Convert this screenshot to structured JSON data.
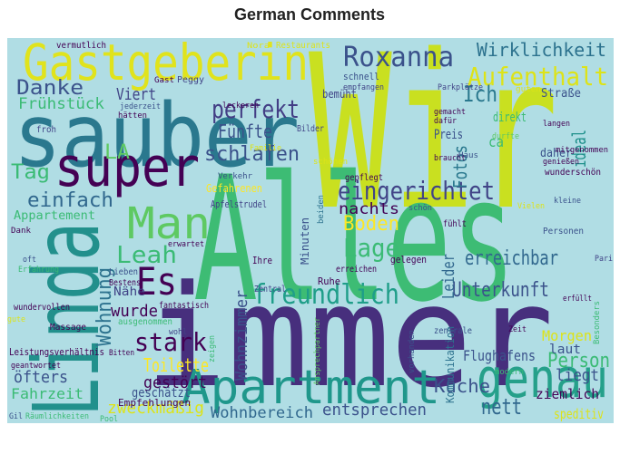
{
  "title": "German Comments",
  "words": [
    {
      "text": "Wir",
      "color": "#c9e020"
    },
    {
      "text": "Alles",
      "color": "#3dbc74"
    },
    {
      "text": "immer",
      "color": "#472f7d"
    },
    {
      "text": "sauber",
      "color": "#2a788e"
    },
    {
      "text": "Gastgeberin",
      "color": "#e0e31c"
    },
    {
      "text": "Linda",
      "color": "#22908c"
    },
    {
      "text": "Apartment",
      "color": "#1f978b"
    },
    {
      "text": "super",
      "color": "#440154"
    },
    {
      "text": "Man",
      "color": "#5ec962"
    },
    {
      "text": "genau",
      "color": "#25a08a"
    },
    {
      "text": "Es",
      "color": "#440154"
    },
    {
      "text": "Roxanna",
      "color": "#3b528b"
    },
    {
      "text": "Aufenthalt",
      "color": "#dde318"
    },
    {
      "text": "Wirklichkeit",
      "color": "#2c728e"
    },
    {
      "text": "Ich",
      "color": "#2a788e"
    },
    {
      "text": "Danke",
      "color": "#3b528b"
    },
    {
      "text": "Viert",
      "color": "#414487"
    },
    {
      "text": "perfekt",
      "color": "#433e85"
    },
    {
      "text": "Fünfte",
      "color": "#3b528b"
    },
    {
      "text": "Frühstück",
      "color": "#3bbb75"
    },
    {
      "text": "LA",
      "color": "#5ec962"
    },
    {
      "text": "Tag",
      "color": "#3bbb75"
    },
    {
      "text": "schlafen",
      "color": "#3b528b"
    },
    {
      "text": "eingerichtet",
      "color": "#414487"
    },
    {
      "text": "einfach",
      "color": "#31688e"
    },
    {
      "text": "Appartement",
      "color": "#3bbb75"
    },
    {
      "text": "Leah",
      "color": "#3bbb75"
    },
    {
      "text": "nachts",
      "color": "#440154"
    },
    {
      "text": "Boden",
      "color": "#fde725"
    },
    {
      "text": "Lage",
      "color": "#3bbb75"
    },
    {
      "text": "Wohnung",
      "color": "#2c728e"
    },
    {
      "text": "Nähe",
      "color": "#414487"
    },
    {
      "text": "wurde",
      "color": "#440154"
    },
    {
      "text": "freundlich",
      "color": "#1f9e89"
    },
    {
      "text": "Unterkunft",
      "color": "#3b528b"
    },
    {
      "text": "erreichbar",
      "color": "#31688e"
    },
    {
      "text": "Leider",
      "color": "#31688e"
    },
    {
      "text": "Fotos",
      "color": "#2a788e"
    },
    {
      "text": "ideal",
      "color": "#21918c"
    },
    {
      "text": "Person",
      "color": "#3bbb75"
    },
    {
      "text": "stark",
      "color": "#440154"
    },
    {
      "text": "Toilette",
      "color": "#fde725"
    },
    {
      "text": "gestört",
      "color": "#440154"
    },
    {
      "text": "Wohnzimmer",
      "color": "#3b528b"
    },
    {
      "text": "Küche",
      "color": "#3b528b"
    },
    {
      "text": "nett",
      "color": "#31688e"
    },
    {
      "text": "entsprechen",
      "color": "#3b528b"
    },
    {
      "text": "zweckmäßig",
      "color": "#dde318"
    },
    {
      "text": "Wohnbereich",
      "color": "#31688e"
    },
    {
      "text": "Fahrzeit",
      "color": "#3bbb75"
    },
    {
      "text": "öfters",
      "color": "#3b528b"
    },
    {
      "text": "Empfehlungen",
      "color": "#440154"
    },
    {
      "text": "geschätzt",
      "color": "#3b528b"
    },
    {
      "text": "Morgen",
      "color": "#dde318"
    },
    {
      "text": "laut",
      "color": "#3b528b"
    },
    {
      "text": "liegt",
      "color": "#3b528b"
    },
    {
      "text": "Flughafens",
      "color": "#3b528b"
    },
    {
      "text": "Kommunikation",
      "color": "#2c728e"
    },
    {
      "text": "ziemlich",
      "color": "#440154"
    },
    {
      "text": "speditiv",
      "color": "#dde318"
    },
    {
      "text": "Straße",
      "color": "#3b528b"
    },
    {
      "text": "direkt",
      "color": "#3bbb75"
    },
    {
      "text": "Preis",
      "color": "#3b528b"
    },
    {
      "text": "ca",
      "color": "#3bbb75"
    },
    {
      "text": "daher",
      "color": "#3b528b"
    },
    {
      "text": "Leistungsverhältnis",
      "color": "#440154"
    },
    {
      "text": "vermutlich",
      "color": "#440154"
    },
    {
      "text": "Nora",
      "color": "#dde318"
    },
    {
      "text": "Restaurants",
      "color": "#dde318"
    },
    {
      "text": "schnell",
      "color": "#3b528b"
    },
    {
      "text": "empfangen",
      "color": "#414487"
    },
    {
      "text": "Parkplätze",
      "color": "#414487"
    },
    {
      "text": "Gast",
      "color": "#440154"
    },
    {
      "text": "Peggy",
      "color": "#414487"
    },
    {
      "text": "jederzeit",
      "color": "#3b528b"
    },
    {
      "text": "hätten",
      "color": "#440154"
    },
    {
      "text": "leckeren",
      "color": "#440154"
    },
    {
      "text": "bemüht",
      "color": "#414487"
    },
    {
      "text": "Bilder",
      "color": "#414487"
    },
    {
      "text": "gemacht",
      "color": "#440154"
    },
    {
      "text": "dafür",
      "color": "#440154"
    },
    {
      "text": "durfte",
      "color": "#5ec962"
    },
    {
      "text": "braucht",
      "color": "#440154"
    },
    {
      "text": "Haus",
      "color": "#3b528b"
    },
    {
      "text": "langen",
      "color": "#440154"
    },
    {
      "text": "guten",
      "color": "#dde318"
    },
    {
      "text": "froh",
      "color": "#414487"
    },
    {
      "text": "schönen",
      "color": "#dde318"
    },
    {
      "text": "Verkehr",
      "color": "#3b528b"
    },
    {
      "text": "Gefahrenen",
      "color": "#fde725"
    },
    {
      "text": "Apfelstrudel",
      "color": "#414487"
    },
    {
      "text": "gepflegt",
      "color": "#440154"
    },
    {
      "text": "Familie",
      "color": "#dde318"
    },
    {
      "text": "Minuten",
      "color": "#3b528b"
    },
    {
      "text": "beiden",
      "color": "#2c728e"
    },
    {
      "text": "Ihre",
      "color": "#440154"
    },
    {
      "text": "Ruhe",
      "color": "#440154"
    },
    {
      "text": "gelegen",
      "color": "#440154"
    },
    {
      "text": "schön",
      "color": "#3b528b"
    },
    {
      "text": "fühlt",
      "color": "#440154"
    },
    {
      "text": "Vielen",
      "color": "#dde318"
    },
    {
      "text": "kleine",
      "color": "#3b528b"
    },
    {
      "text": "Personen",
      "color": "#3b528b"
    },
    {
      "text": "Pari",
      "color": "#414487"
    },
    {
      "text": "Besonders",
      "color": "#3bbb75"
    },
    {
      "text": "erfüllt",
      "color": "#440154"
    },
    {
      "text": "mitgenommen",
      "color": "#440154"
    },
    {
      "text": "wunderschön",
      "color": "#440154"
    },
    {
      "text": "genießen",
      "color": "#440154"
    },
    {
      "text": "Zentral",
      "color": "#414487"
    },
    {
      "text": "Lieben",
      "color": "#3b528b"
    },
    {
      "text": "Bestens",
      "color": "#440154"
    },
    {
      "text": "fantastisch",
      "color": "#440154"
    },
    {
      "text": "Massage",
      "color": "#440154"
    },
    {
      "text": "ausgenommen",
      "color": "#3bbb75"
    },
    {
      "text": "wohl",
      "color": "#414487"
    },
    {
      "text": "Bitten",
      "color": "#440154"
    },
    {
      "text": "Dank",
      "color": "#440154"
    },
    {
      "text": "oft",
      "color": "#3b528b"
    },
    {
      "text": "Erfahrung",
      "color": "#3bbb75"
    },
    {
      "text": "Gil",
      "color": "#3b528b"
    },
    {
      "text": "Räumlichkeiten",
      "color": "#3bbb75"
    },
    {
      "text": "geantwortet",
      "color": "#440154"
    },
    {
      "text": "wundervollen",
      "color": "#440154"
    },
    {
      "text": "gute",
      "color": "#dde318"
    },
    {
      "text": "zeigen",
      "color": "#3bbb75"
    },
    {
      "text": "zentrale",
      "color": "#3b528b"
    },
    {
      "text": "Zeit",
      "color": "#440154"
    },
    {
      "text": "vorhanden",
      "color": "#3b528b"
    },
    {
      "text": "modern",
      "color": "#3bbb75"
    },
    {
      "text": "Pool",
      "color": "#3bbb75"
    },
    {
      "text": "Ansprechpartner",
      "color": "#5ec962"
    },
    {
      "text": "erreichen",
      "color": "#440154"
    },
    {
      "text": "erwartet",
      "color": "#440154"
    }
  ]
}
